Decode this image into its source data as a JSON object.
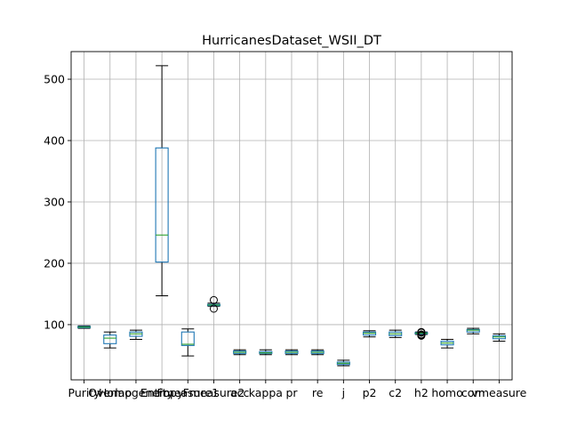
{
  "chart_data": {
    "type": "box",
    "title": "HurricanesDataset_WSII_DT",
    "xlabel": "",
    "ylabel": "",
    "ylim": [
      10,
      545
    ],
    "yticks": [
      100,
      200,
      300,
      400,
      500
    ],
    "grid": true,
    "categories": [
      "Purity",
      "Overlap",
      "Homogeneity",
      "Entropy",
      "Fmeasure1",
      "Fmeasure2",
      "acc",
      "kappa",
      "pr",
      "re",
      "j",
      "p2",
      "c2",
      "h2",
      "homo",
      "com",
      "vmeasure"
    ],
    "tick_labels_rendered": [
      "Purity",
      "Overlap",
      "Homogeneity",
      "Entropy",
      "Fmeasure1",
      "Fmeasure2",
      "acc",
      "kappa",
      "pr",
      "re",
      "j",
      "p2",
      "c2",
      "h2",
      "homo",
      "com",
      "vmeasure"
    ],
    "series": [
      {
        "name": "Purity",
        "whislo": 94,
        "q1": 95,
        "med": 96,
        "q3": 97,
        "whishi": 98,
        "fliers": []
      },
      {
        "name": "Overlap",
        "whislo": 62,
        "q1": 69,
        "med": 78,
        "q3": 83,
        "whishi": 88,
        "fliers": []
      },
      {
        "name": "Homogeneity",
        "whislo": 76,
        "q1": 81,
        "med": 85,
        "q3": 88,
        "whishi": 91,
        "fliers": []
      },
      {
        "name": "Entropy",
        "whislo": 147,
        "q1": 202,
        "med": 246,
        "q3": 388,
        "whishi": 522,
        "fliers": []
      },
      {
        "name": "Fmeasure1",
        "whislo": 49,
        "q1": 66,
        "med": 68,
        "q3": 88,
        "whishi": 93,
        "fliers": []
      },
      {
        "name": "Fmeasure2",
        "whislo": 130,
        "q1": 131,
        "med": 132,
        "q3": 133,
        "whishi": 135,
        "fliers": [
          126,
          140
        ]
      },
      {
        "name": "acc",
        "whislo": 51,
        "q1": 53,
        "med": 55,
        "q3": 57,
        "whishi": 59,
        "fliers": []
      },
      {
        "name": "kappa",
        "whislo": 51,
        "q1": 53,
        "med": 54,
        "q3": 56,
        "whishi": 59,
        "fliers": []
      },
      {
        "name": "pr",
        "whislo": 51,
        "q1": 53,
        "med": 55,
        "q3": 57,
        "whishi": 59,
        "fliers": []
      },
      {
        "name": "re",
        "whislo": 51,
        "q1": 53,
        "med": 55,
        "q3": 57,
        "whishi": 59,
        "fliers": []
      },
      {
        "name": "j",
        "whislo": 33,
        "q1": 35,
        "med": 37,
        "q3": 39,
        "whishi": 42,
        "fliers": []
      },
      {
        "name": "p2",
        "whislo": 80,
        "q1": 83,
        "med": 86,
        "q3": 88,
        "whishi": 90,
        "fliers": []
      },
      {
        "name": "c2",
        "whislo": 79,
        "q1": 82,
        "med": 85,
        "q3": 88,
        "whishi": 91,
        "fliers": []
      },
      {
        "name": "h2",
        "whislo": 84,
        "q1": 85,
        "med": 86,
        "q3": 87,
        "whishi": 88,
        "fliers": [
          82,
          83,
          84,
          87,
          88
        ]
      },
      {
        "name": "homo",
        "whislo": 62,
        "q1": 67,
        "med": 70,
        "q3": 73,
        "whishi": 76,
        "fliers": []
      },
      {
        "name": "com",
        "whislo": 85,
        "q1": 88,
        "med": 91,
        "q3": 92,
        "whishi": 94,
        "fliers": []
      },
      {
        "name": "vmeasure",
        "whislo": 73,
        "q1": 77,
        "med": 80,
        "q3": 82,
        "whishi": 85,
        "fliers": []
      }
    ],
    "colors": {
      "box": "#1f77b4",
      "median": "#2ca02c",
      "whisker": "#000000",
      "grid": "#b0b0b0"
    }
  }
}
